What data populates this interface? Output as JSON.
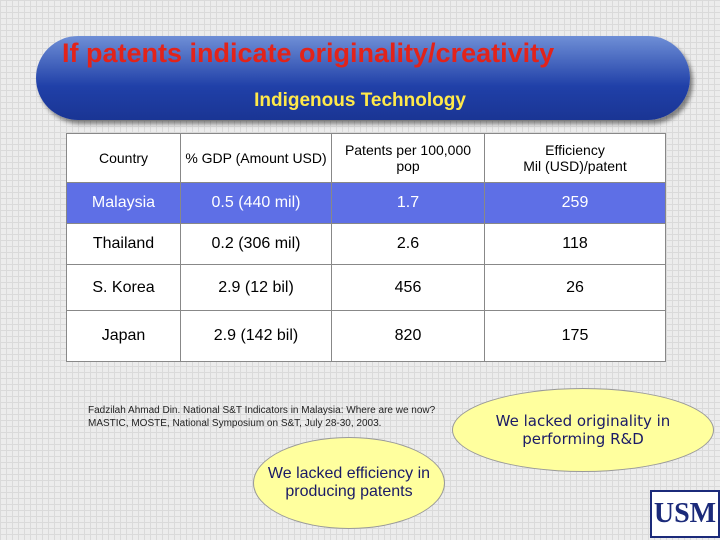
{
  "header": {
    "title": "If patents indicate originality/creativity",
    "subtitle": "Indigenous Technology"
  },
  "table": {
    "columns": [
      [
        "Country"
      ],
      [
        "% GDP (Amount USD)"
      ],
      [
        "Patents per 100,000 pop"
      ],
      [
        "Efficiency",
        "Mil (USD)/patent"
      ]
    ],
    "rows": [
      [
        "Malaysia",
        "0.5 (440 mil)",
        "1.7",
        "259"
      ],
      [
        "Thailand",
        "0.2 (306 mil)",
        "2.6",
        "118"
      ],
      [
        "S. Korea",
        "2.9 (12 bil)",
        "456",
        "26"
      ],
      [
        "Japan",
        "2.9 (142 bil)",
        "820",
        "175"
      ]
    ]
  },
  "source": "Fadzilah Ahmad Din. National S&T Indicators in Malaysia: Where are we now? MASTIC, MOSTE, National Symposium on S&T, July 28-30, 2003.",
  "callouts": [
    "We lacked originality in performing R&D",
    "We lacked efficiency in producing patents"
  ],
  "logo": "USM"
}
